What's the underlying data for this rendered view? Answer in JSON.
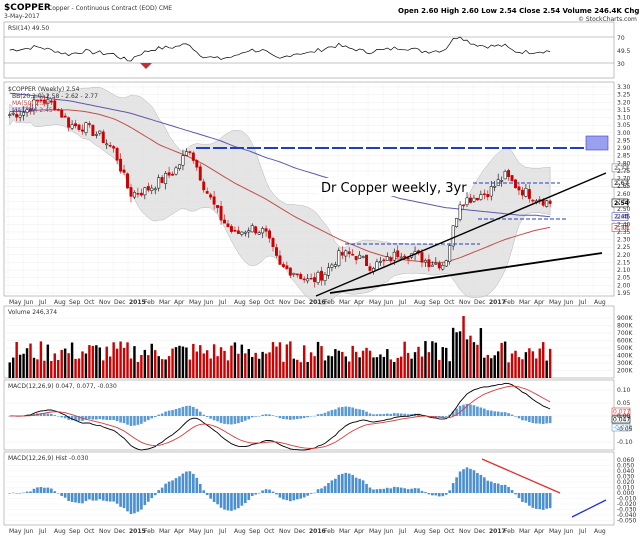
{
  "header": {
    "symbol": "$COPPER",
    "description": "Copper - Continuous Contract (EOD) CME",
    "date": "3-May-2017",
    "ohlc": "Open 2.60   High 2.60   Low 2.54   Close 2.54   Volume 246.4K   Chg -0.06 (-2.46%)",
    "branding": "© StockCharts.com"
  },
  "rsi": {
    "label": "RSI(14) 49.50",
    "levels": [
      70,
      30
    ],
    "current": 49.5
  },
  "price_panel": {
    "legend": [
      "$COPPER (Weekly) 2.54",
      "BB(20,2.0) 2.58 - 2.62 - 2.77",
      "MA(50) 2.38",
      "MA(200) 2.45"
    ],
    "annotation": "Dr Copper weekly, 3yr",
    "price_ticks": [
      "3.30",
      "3.25",
      "3.20",
      "3.15",
      "3.10",
      "3.05",
      "3.00",
      "2.95",
      "2.90",
      "2.85",
      "2.80",
      "2.75",
      "2.70",
      "2.65",
      "2.60",
      "2.55",
      "2.50",
      "2.45",
      "2.40",
      "2.35",
      "2.30",
      "2.25",
      "2.20",
      "2.15",
      "2.10",
      "2.05",
      "2.00",
      "1.95"
    ],
    "tag_values": [
      "2.77",
      "2.67",
      "2.54",
      "2.45",
      "2.38"
    ],
    "colors": {
      "ma50": "#c0504d",
      "ma200": "#5a5aa8",
      "bb_fill": "#dcdcdc",
      "up": "#ffffff",
      "down": "#cc0000",
      "trendline": "#000000",
      "horizontal": "#1f3fbf"
    }
  },
  "volume": {
    "label": "Volume 246,374",
    "ticks": [
      "900K",
      "800K",
      "700K",
      "600K",
      "500K",
      "400K",
      "300K",
      "200K"
    ]
  },
  "macd": {
    "label": "MACD(12,26,9) 0.047, 0.077, -0.030",
    "ticks": [
      "0.10",
      "0.05",
      "0.00",
      "-0.05",
      "-0.10"
    ],
    "tag_values": [
      "0.077",
      "0.047",
      "-0.030"
    ]
  },
  "hist": {
    "label": "MACD(12,26,9) Hist -0.030",
    "ticks": [
      "0.060",
      "0.050",
      "0.040",
      "0.030",
      "0.020",
      "0.010",
      "0.000",
      "-0.010",
      "-0.020",
      "-0.030",
      "-0.040",
      "-0.050"
    ]
  },
  "x_axis": {
    "labels": [
      "May",
      "Jun",
      "Jul",
      "Aug",
      "Sep",
      "Oct",
      "Nov",
      "Dec",
      "2015",
      "Feb",
      "Mar",
      "Apr",
      "May",
      "Jun",
      "Jul",
      "Aug",
      "Sep",
      "Oct",
      "Nov",
      "Dec",
      "2016",
      "Feb",
      "Mar",
      "Apr",
      "May",
      "Jun",
      "Jul",
      "Aug",
      "Sep",
      "Oct",
      "Nov",
      "Dec",
      "2017",
      "Feb",
      "Mar",
      "Apr",
      "May",
      "Jun",
      "Jul",
      "Aug"
    ]
  },
  "chart_data": {
    "type": "line",
    "title": "$COPPER",
    "subtitle": "Copper - Continuous Contract (EOD) CME",
    "xlabel": "",
    "ylabel": "",
    "ylim": [
      1.93,
      3.32
    ],
    "x": [
      "2014-05",
      "2014-06",
      "2014-07",
      "2014-08",
      "2014-09",
      "2014-10",
      "2014-11",
      "2014-12",
      "2015-01",
      "2015-02",
      "2015-03",
      "2015-04",
      "2015-05",
      "2015-06",
      "2015-07",
      "2015-08",
      "2015-09",
      "2015-10",
      "2015-11",
      "2015-12",
      "2016-01",
      "2016-02",
      "2016-03",
      "2016-04",
      "2016-05",
      "2016-06",
      "2016-07",
      "2016-08",
      "2016-09",
      "2016-10",
      "2016-11",
      "2016-12",
      "2017-01",
      "2017-02",
      "2017-03",
      "2017-04",
      "2017-05"
    ],
    "series": [
      {
        "name": "$COPPER (Weekly) 2.54",
        "values": [
          3.12,
          3.14,
          3.22,
          3.18,
          3.05,
          3.04,
          2.98,
          2.88,
          2.6,
          2.62,
          2.68,
          2.75,
          2.9,
          2.64,
          2.45,
          2.33,
          2.38,
          2.35,
          2.12,
          2.09,
          2.02,
          2.08,
          2.2,
          2.2,
          2.13,
          2.15,
          2.22,
          2.2,
          2.15,
          2.14,
          2.55,
          2.58,
          2.62,
          2.72,
          2.63,
          2.58,
          2.54
        ]
      },
      {
        "name": "MA(50) 2.38",
        "values": [
          3.14,
          3.14,
          3.15,
          3.15,
          3.15,
          3.14,
          3.12,
          3.09,
          3.04,
          2.98,
          2.92,
          2.88,
          2.84,
          2.79,
          2.73,
          2.67,
          2.62,
          2.57,
          2.51,
          2.45,
          2.4,
          2.35,
          2.3,
          2.26,
          2.22,
          2.19,
          2.17,
          2.16,
          2.15,
          2.15,
          2.18,
          2.22,
          2.26,
          2.3,
          2.33,
          2.36,
          2.38
        ]
      },
      {
        "name": "MA(200) 2.45",
        "values": [
          3.26,
          3.25,
          3.24,
          3.22,
          3.21,
          3.19,
          3.17,
          3.15,
          3.13,
          3.1,
          3.07,
          3.04,
          3.01,
          2.98,
          2.95,
          2.91,
          2.88,
          2.84,
          2.81,
          2.77,
          2.74,
          2.71,
          2.68,
          2.65,
          2.62,
          2.6,
          2.57,
          2.55,
          2.53,
          2.51,
          2.5,
          2.49,
          2.48,
          2.47,
          2.46,
          2.46,
          2.45
        ]
      }
    ]
  }
}
